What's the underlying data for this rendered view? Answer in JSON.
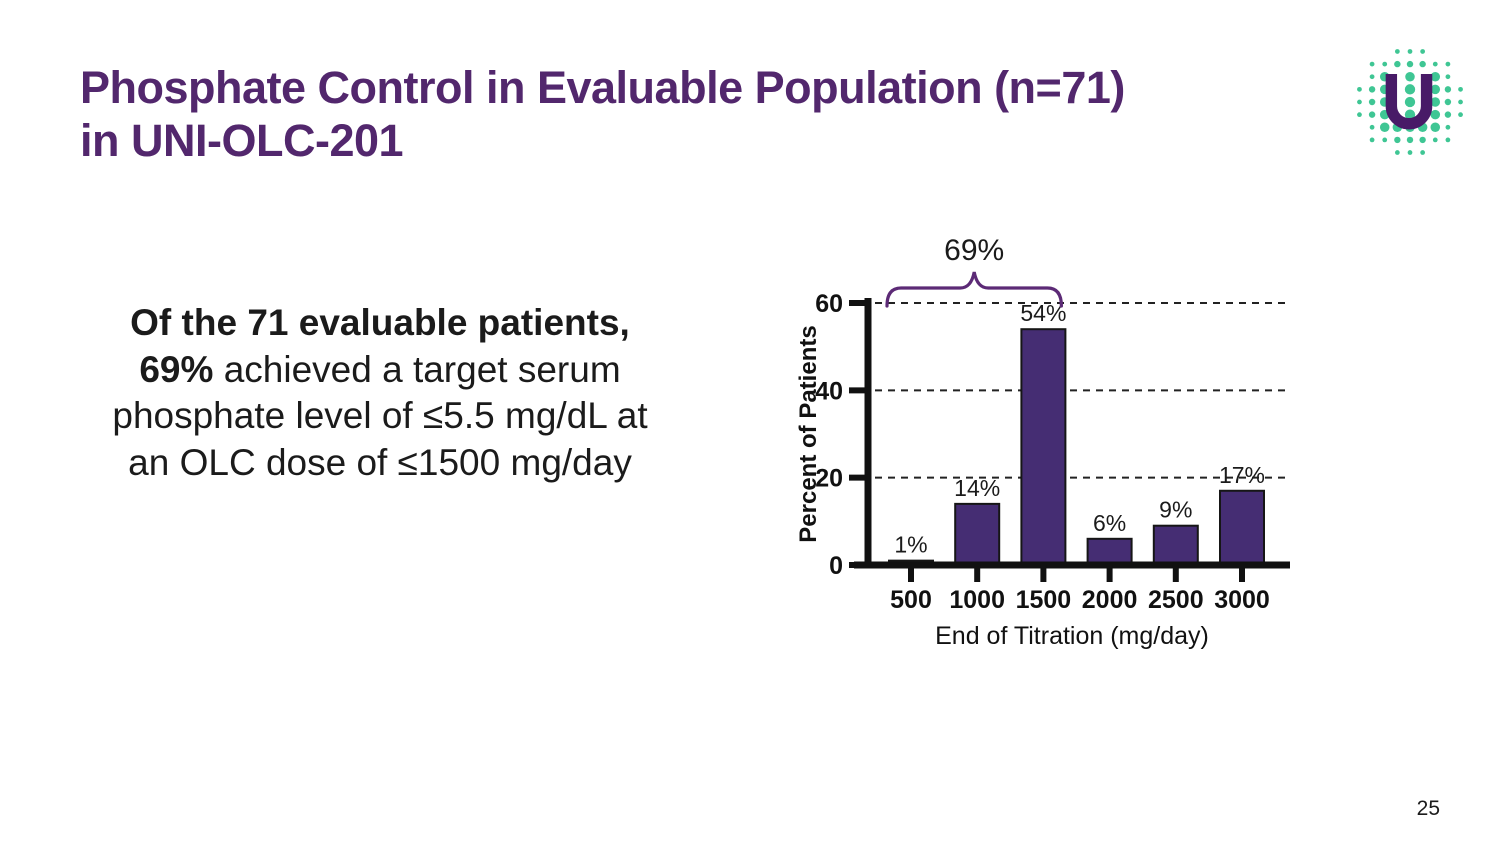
{
  "slide": {
    "title_line1": "Phosphate Control in Evaluable Population (n=71)",
    "title_line2": "in UNI-OLC-201",
    "page_number": "25"
  },
  "body": {
    "highlight": "Of the 71 evaluable patients, 69%",
    "rest": " achieved a target serum phosphate level of ≤5.5 mg/dL at an OLC dose of ≤1500 mg/day"
  },
  "logo": {
    "letter": "U"
  },
  "colors": {
    "title_purple": "#52276d",
    "bar_fill": "#452d73",
    "bar_stroke": "#161616",
    "brace_purple": "#5c2a76",
    "axis_black": "#111111",
    "grid_black": "#222222",
    "logo_teal": "#3fc694",
    "logo_purple": "#481a67",
    "text_black": "#1b1b1b"
  },
  "chart_data": {
    "type": "bar",
    "categories": [
      "500",
      "1000",
      "1500",
      "2000",
      "2500",
      "3000"
    ],
    "values": [
      1,
      14,
      54,
      6,
      9,
      17
    ],
    "bar_labels": [
      "1%",
      "14%",
      "54%",
      "6%",
      "9%",
      "17%"
    ],
    "title": "",
    "xlabel": "End of Titration (mg/day)",
    "ylabel": "Percent of Patients",
    "ylim": [
      0,
      60
    ],
    "yticks": [
      0,
      20,
      40,
      60
    ],
    "grid": "dashed horizontal gridlines at 20, 40, 60",
    "legend": "none",
    "annotation": {
      "label": "69%",
      "span_categories": [
        "500",
        "1000",
        "1500"
      ],
      "style": "curly brace over first three bars"
    }
  }
}
